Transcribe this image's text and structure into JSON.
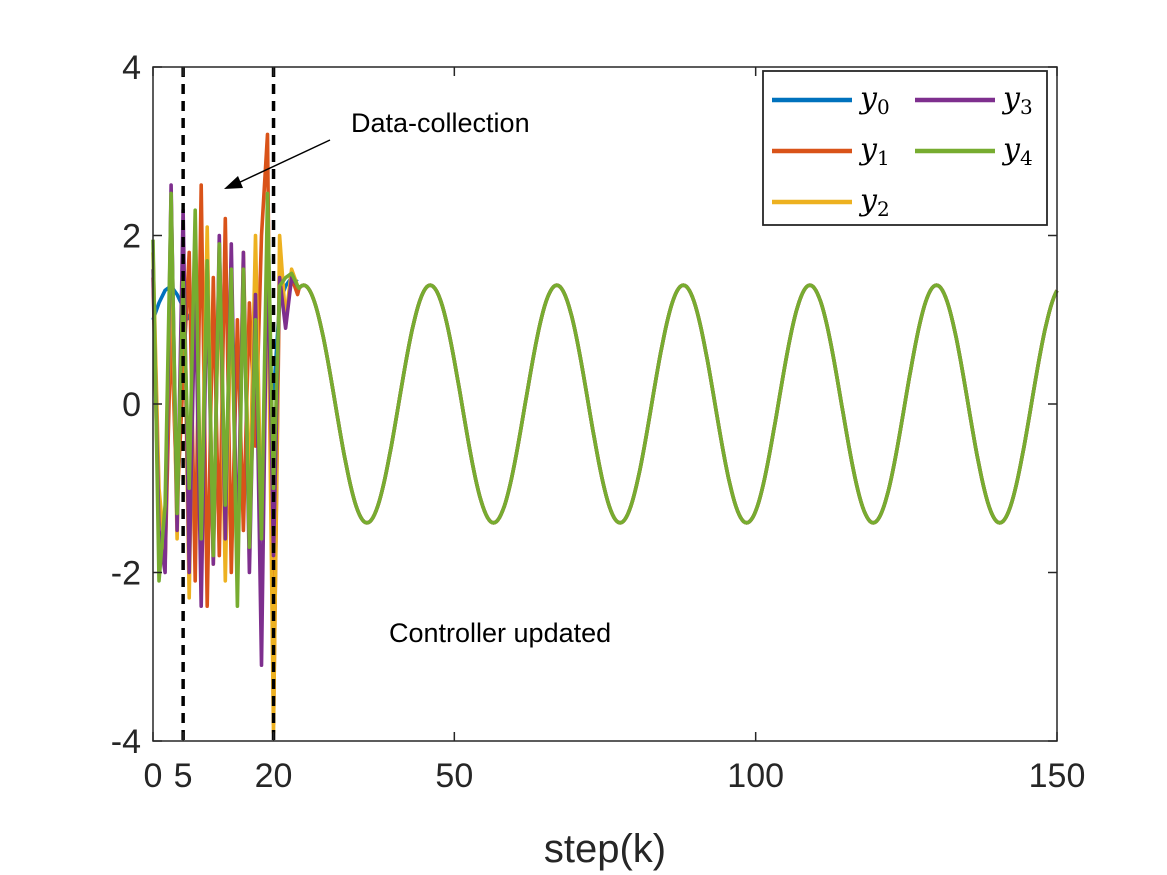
{
  "chart_data": {
    "type": "line",
    "title": "",
    "xlabel": "step(k)",
    "ylabel": "",
    "xlim": [
      0,
      150
    ],
    "ylim": [
      -4,
      4
    ],
    "xticks": [
      0,
      5,
      20,
      50,
      100,
      150
    ],
    "xtick_labels": [
      "0",
      "5",
      "20",
      "50",
      "100",
      "150"
    ],
    "yticks": [
      -4,
      -2,
      0,
      2,
      4
    ],
    "ytick_labels": [
      "-4",
      "-2",
      "0",
      "2",
      "4"
    ],
    "legend_position": "top-right",
    "grid": false,
    "vlines": [
      5,
      20
    ],
    "annotations": [
      {
        "text": "Data-collection",
        "x": 28.5,
        "y": 3.4,
        "arrow_to": [
          12,
          2.55
        ]
      },
      {
        "text": "Controller updated",
        "x": 62,
        "y": -2.75
      }
    ],
    "series": [
      {
        "name": "y",
        "subscript": "0",
        "color": "#0072BD"
      },
      {
        "name": "y",
        "subscript": "1",
        "color": "#D95319"
      },
      {
        "name": "y",
        "subscript": "2",
        "color": "#EDB120"
      },
      {
        "name": "y",
        "subscript": "3",
        "color": "#7E2F8E"
      },
      {
        "name": "y",
        "subscript": "4",
        "color": "#77AC30"
      }
    ],
    "steady_state": {
      "amplitude": 1.41,
      "period": 21,
      "peaks_at": [
        46,
        67,
        88,
        109,
        130,
        151
      ]
    },
    "transient_samples": {
      "x": [
        0,
        1,
        2,
        3,
        4,
        5,
        6,
        7,
        8,
        9,
        10,
        11,
        12,
        13,
        14,
        15,
        16,
        17,
        18,
        19,
        20,
        21,
        22,
        23,
        24
      ],
      "y0": [
        1.0,
        1.2,
        1.35,
        1.4,
        1.3,
        1.15,
        1.0,
        null,
        null,
        null,
        null,
        null,
        null,
        null,
        null,
        null,
        null,
        null,
        null,
        null,
        0.1,
        1.2,
        1.4,
        1.5,
        1.45
      ],
      "y1": [
        1.5,
        -1.6,
        -1.9,
        1.0,
        -1.2,
        0.3,
        1.8,
        -2.1,
        2.6,
        -2.4,
        1.5,
        -1.8,
        2.2,
        -2.0,
        1.0,
        -1.5,
        1.2,
        -0.5,
        2.0,
        3.2,
        -3.8,
        1.6,
        1.0,
        1.5,
        1.3
      ],
      "y2": [
        1.8,
        -1.0,
        -1.8,
        2.0,
        -1.6,
        2.0,
        -2.3,
        1.9,
        -1.5,
        2.1,
        -1.9,
        1.8,
        -2.1,
        1.4,
        -2.0,
        1.8,
        -1.3,
        2.0,
        -1.6,
        2.0,
        -3.9,
        2.0,
        1.0,
        1.6,
        1.4
      ],
      "y3": [
        1.6,
        -1.5,
        -2.0,
        2.6,
        -1.5,
        2.3,
        -2.0,
        1.5,
        -2.4,
        1.6,
        -1.9,
        2.0,
        -1.6,
        1.9,
        -2.0,
        1.8,
        -2.0,
        1.3,
        -3.1,
        2.1,
        -1.8,
        1.5,
        0.9,
        1.5,
        1.4
      ],
      "y4": [
        1.95,
        -2.1,
        -1.2,
        2.5,
        -1.3,
        1.5,
        -1.0,
        2.3,
        -1.6,
        1.7,
        -1.8,
        1.9,
        -1.2,
        1.6,
        -2.4,
        1.6,
        -1.7,
        1.0,
        -1.6,
        2.5,
        -1.0,
        1.4,
        1.5,
        1.55,
        1.4
      ]
    }
  }
}
